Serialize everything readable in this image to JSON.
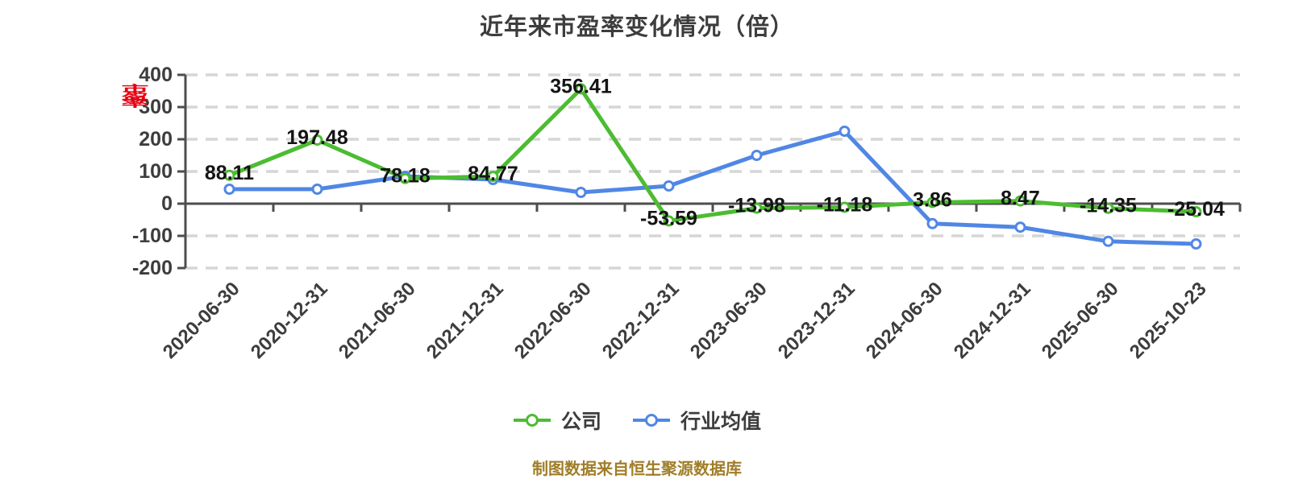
{
  "title": "近年来市盈率变化情况（倍）",
  "y_axis_name": "市盈率",
  "footer": "制图数据来自恒生聚源数据库",
  "legend": [
    {
      "label": "公司",
      "color": "#4cbc32"
    },
    {
      "label": "行业均值",
      "color": "#5087e5"
    }
  ],
  "colors": {
    "company_line": "#4cbc32",
    "industry_line": "#5087e5",
    "axis": "#4d4d4d",
    "tick_text": "#3d3d3d",
    "data_label": "#141414",
    "grid": "#d6d6d6",
    "marker_fill": "#ffffff",
    "title_text": "#3d3d3d",
    "footer_text": "#a07e28",
    "y_name_text": "#e60012"
  },
  "chart_data": {
    "type": "line",
    "title": "近年来市盈率变化情况（倍）",
    "categories": [
      "2020-06-30",
      "2020-12-31",
      "2021-06-30",
      "2021-12-31",
      "2022-06-30",
      "2022-12-31",
      "2023-06-30",
      "2023-12-31",
      "2024-06-30",
      "2024-12-31",
      "2025-06-30",
      "2025-10-23"
    ],
    "series": [
      {
        "name": "公司",
        "color": "#4cbc32",
        "values": [
          88.11,
          197.48,
          78.18,
          84.77,
          356.41,
          -53.59,
          -13.98,
          -11.18,
          3.86,
          8.47,
          -14.35,
          -25.04
        ],
        "labels_visible": true
      },
      {
        "name": "行业均值",
        "color": "#5087e5",
        "values": [
          45,
          45,
          85,
          75,
          35,
          55,
          150,
          225,
          -62,
          -73,
          -117,
          -125
        ],
        "labels_visible": false
      }
    ],
    "yticks": [
      400,
      300,
      200,
      100,
      0,
      -100,
      -200
    ],
    "ylim": [
      -200,
      400
    ],
    "grid": "dashed",
    "legend_position": "bottom",
    "x_label_rotation": 45
  }
}
